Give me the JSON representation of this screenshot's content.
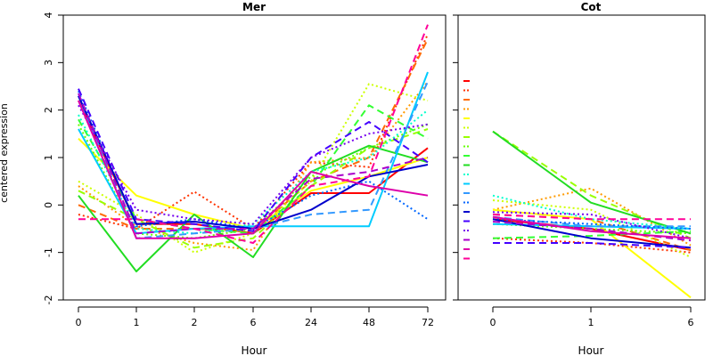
{
  "ylabel": "centered expression",
  "chart_data": [
    {
      "type": "line",
      "title": "Mer",
      "xlabel": "Hour",
      "ylabel": "centered expression",
      "categories": [
        "0",
        "1",
        "2",
        "6",
        "24",
        "48",
        "72"
      ],
      "ylim": [
        -2,
        4
      ],
      "yticks": [
        "-2",
        "-1",
        "0",
        "1",
        "2",
        "3",
        "4"
      ],
      "series": [
        {
          "color": "#ff0000",
          "style": "solid",
          "values": [
            2.2,
            -0.4,
            -0.4,
            -0.6,
            0.25,
            0.25,
            1.2
          ]
        },
        {
          "color": "#ff3300",
          "style": "dotted",
          "values": [
            -0.2,
            -0.5,
            0.28,
            -0.5,
            0.9,
            0.8,
            3.6
          ]
        },
        {
          "color": "#ff6a00",
          "style": "dashed",
          "values": [
            0.0,
            -0.5,
            -0.5,
            -0.55,
            0.5,
            1.0,
            3.5
          ]
        },
        {
          "color": "#ff9a00",
          "style": "dotted",
          "values": [
            0.4,
            -0.45,
            -0.8,
            -0.95,
            0.9,
            1.0,
            2.6
          ]
        },
        {
          "color": "#ffff00",
          "style": "solid",
          "values": [
            1.4,
            0.2,
            -0.2,
            -0.5,
            0.3,
            0.6,
            1.0
          ]
        },
        {
          "color": "#ccff00",
          "style": "dotted",
          "values": [
            0.5,
            -0.2,
            -1.0,
            -0.6,
            0.5,
            2.55,
            2.2
          ]
        },
        {
          "color": "#99ff00",
          "style": "dashed",
          "values": [
            0.3,
            -0.3,
            -0.9,
            -0.7,
            0.4,
            1.2,
            1.6
          ]
        },
        {
          "color": "#66ff00",
          "style": "dotted",
          "values": [
            1.7,
            -0.6,
            -0.7,
            -0.5,
            0.6,
            1.2,
            1.7
          ]
        },
        {
          "color": "#33ff33",
          "style": "dashed",
          "values": [
            1.8,
            -0.3,
            -0.5,
            -0.6,
            0.4,
            2.1,
            1.4
          ]
        },
        {
          "color": "#22dd22",
          "style": "solid",
          "values": [
            0.2,
            -1.4,
            -0.2,
            -1.1,
            0.7,
            1.25,
            0.9
          ]
        },
        {
          "color": "#00ffcc",
          "style": "dotted",
          "values": [
            1.9,
            -0.5,
            -0.6,
            -0.4,
            0.7,
            1.0,
            2.0
          ]
        },
        {
          "color": "#00ccff",
          "style": "solid",
          "values": [
            1.6,
            -0.6,
            -0.5,
            -0.45,
            -0.45,
            -0.45,
            2.8
          ]
        },
        {
          "color": "#3399ff",
          "style": "dashed",
          "values": [
            2.3,
            -0.7,
            -0.6,
            -0.5,
            -0.2,
            -0.1,
            2.6
          ]
        },
        {
          "color": "#0066ff",
          "style": "dotted",
          "values": [
            2.4,
            -0.45,
            -0.3,
            -0.5,
            0.2,
            0.5,
            -0.3
          ]
        },
        {
          "color": "#0000cc",
          "style": "solid",
          "values": [
            2.3,
            -0.4,
            -0.35,
            -0.5,
            -0.1,
            0.6,
            0.85
          ]
        },
        {
          "color": "#4400ff",
          "style": "dashed",
          "values": [
            2.45,
            -0.3,
            -0.4,
            -0.55,
            1.0,
            1.75,
            0.9
          ]
        },
        {
          "color": "#7700ee",
          "style": "dotted",
          "values": [
            2.1,
            -0.1,
            -0.3,
            -0.4,
            1.0,
            1.5,
            1.7
          ]
        },
        {
          "color": "#aa00cc",
          "style": "dashed",
          "values": [
            2.35,
            -0.6,
            -0.5,
            -0.5,
            0.55,
            0.7,
            1.0
          ]
        },
        {
          "color": "#dd00aa",
          "style": "solid",
          "values": [
            2.2,
            -0.7,
            -0.7,
            -0.6,
            0.7,
            0.4,
            0.2
          ]
        },
        {
          "color": "#ff0099",
          "style": "dashed",
          "values": [
            -0.3,
            -0.3,
            -0.5,
            -0.8,
            0.4,
            0.6,
            3.8
          ]
        }
      ]
    },
    {
      "type": "line",
      "title": "Cot",
      "xlabel": "Hour",
      "categories": [
        "0",
        "1",
        "6"
      ],
      "ylim": [
        -2,
        4
      ],
      "series": [
        {
          "color": "#ff0000",
          "style": "solid",
          "values": [
            -0.3,
            -0.5,
            -0.95
          ]
        },
        {
          "color": "#ff3300",
          "style": "dotted",
          "values": [
            -0.7,
            -0.8,
            -1.0
          ]
        },
        {
          "color": "#ff6a00",
          "style": "dashed",
          "values": [
            -0.2,
            -0.3,
            -0.95
          ]
        },
        {
          "color": "#ff9a00",
          "style": "dotted",
          "values": [
            -0.1,
            0.35,
            -0.85
          ]
        },
        {
          "color": "#ffff00",
          "style": "solid",
          "values": [
            -0.1,
            -0.3,
            -1.95
          ]
        },
        {
          "color": "#ccff00",
          "style": "dotted",
          "values": [
            0.1,
            -0.1,
            -1.1
          ]
        },
        {
          "color": "#99ff00",
          "style": "dashed",
          "values": [
            1.55,
            0.2,
            -0.7
          ]
        },
        {
          "color": "#66ff00",
          "style": "dotted",
          "values": [
            -0.4,
            -0.5,
            -0.6
          ]
        },
        {
          "color": "#33ff33",
          "style": "dashed",
          "values": [
            -0.7,
            -0.65,
            -0.55
          ]
        },
        {
          "color": "#22dd22",
          "style": "solid",
          "values": [
            1.55,
            0.05,
            -0.6
          ]
        },
        {
          "color": "#00ffcc",
          "style": "dotted",
          "values": [
            0.2,
            -0.3,
            -0.5
          ]
        },
        {
          "color": "#00ccff",
          "style": "solid",
          "values": [
            -0.4,
            -0.45,
            -0.5
          ]
        },
        {
          "color": "#3399ff",
          "style": "dashed",
          "values": [
            -0.25,
            -0.45,
            -0.45
          ]
        },
        {
          "color": "#0066ff",
          "style": "dotted",
          "values": [
            -0.3,
            -0.4,
            -0.5
          ]
        },
        {
          "color": "#0000cc",
          "style": "solid",
          "values": [
            -0.3,
            -0.7,
            -0.9
          ]
        },
        {
          "color": "#4400ff",
          "style": "dashed",
          "values": [
            -0.8,
            -0.8,
            -0.9
          ]
        },
        {
          "color": "#7700ee",
          "style": "dotted",
          "values": [
            -0.15,
            -0.2,
            -0.7
          ]
        },
        {
          "color": "#aa00cc",
          "style": "dashed",
          "values": [
            -0.35,
            -0.5,
            -0.75
          ]
        },
        {
          "color": "#dd00aa",
          "style": "solid",
          "values": [
            -0.25,
            -0.55,
            -0.7
          ]
        },
        {
          "color": "#ff0099",
          "style": "dashed",
          "values": [
            -0.2,
            -0.3,
            -0.3
          ]
        }
      ]
    }
  ]
}
